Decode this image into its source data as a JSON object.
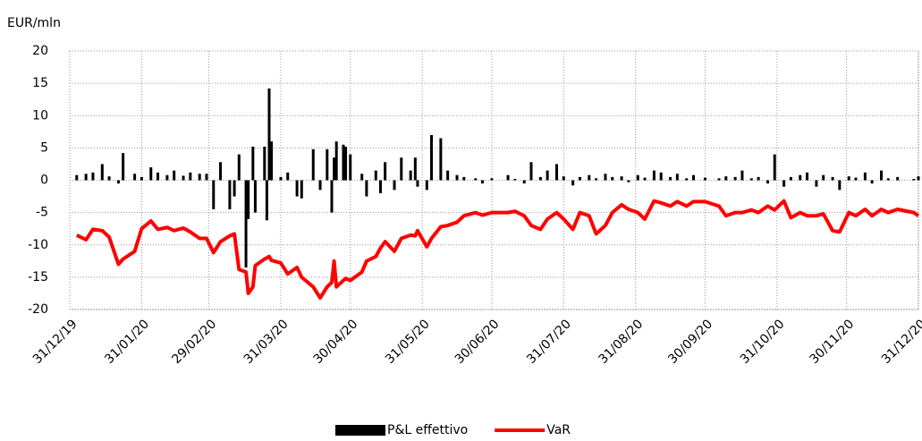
{
  "chart_data": {
    "type": "bar-line",
    "y_axis_label": "EUR/mln",
    "x": [
      "03/01/20",
      "07/01/20",
      "10/01/20",
      "14/01/20",
      "17/01/20",
      "21/01/20",
      "23/01/20",
      "28/01/20",
      "31/01/20",
      "04/02/20",
      "07/02/20",
      "11/02/20",
      "14/02/20",
      "18/02/20",
      "21/02/20",
      "25/02/20",
      "28/02/20",
      "02/03/20",
      "05/03/20",
      "09/03/20",
      "11/03/20",
      "13/03/20",
      "16/03/20",
      "17/03/20",
      "19/03/20",
      "20/03/20",
      "24/03/20",
      "25/03/20",
      "26/03/20",
      "27/03/20",
      "31/03/20",
      "03/04/20",
      "07/04/20",
      "09/04/20",
      "14/04/20",
      "17/04/20",
      "20/04/20",
      "22/04/20",
      "23/04/20",
      "24/04/20",
      "27/04/20",
      "28/04/20",
      "30/04/20",
      "05/05/20",
      "07/05/20",
      "11/05/20",
      "13/05/20",
      "15/05/20",
      "19/05/20",
      "22/05/20",
      "26/05/20",
      "28/05/20",
      "29/05/20",
      "02/06/20",
      "04/06/20",
      "08/06/20",
      "11/06/20",
      "15/06/20",
      "18/06/20",
      "23/06/20",
      "26/06/20",
      "30/06/20",
      "07/07/20",
      "10/07/20",
      "14/07/20",
      "17/07/20",
      "21/07/20",
      "24/07/20",
      "28/07/20",
      "31/07/20",
      "04/08/20",
      "07/08/20",
      "11/08/20",
      "14/08/20",
      "18/08/20",
      "21/08/20",
      "25/08/20",
      "28/08/20",
      "01/09/20",
      "04/09/20",
      "08/09/20",
      "11/09/20",
      "15/09/20",
      "18/09/20",
      "22/09/20",
      "25/09/20",
      "30/09/20",
      "06/10/20",
      "09/10/20",
      "13/10/20",
      "16/10/20",
      "20/10/20",
      "23/10/20",
      "27/10/20",
      "30/10/20",
      "03/11/20",
      "06/11/20",
      "10/11/20",
      "13/11/20",
      "17/11/20",
      "20/11/20",
      "24/11/20",
      "27/11/20",
      "01/12/20",
      "04/12/20",
      "08/12/20",
      "11/12/20",
      "15/12/20",
      "18/12/20",
      "22/12/20",
      "29/12/20",
      "31/12/20"
    ],
    "series": [
      {
        "name": "P&L effettivo",
        "kind": "bar",
        "color": "#000000",
        "values": [
          0.8,
          1.0,
          1.2,
          2.5,
          0.6,
          -0.5,
          4.2,
          1.0,
          0.5,
          2.0,
          1.2,
          0.8,
          1.5,
          0.7,
          1.2,
          1.0,
          1.0,
          -4.5,
          2.8,
          -4.5,
          -2.5,
          4.0,
          -13.5,
          -6.0,
          5.2,
          -5.0,
          5.2,
          -6.2,
          14.2,
          6.0,
          0.5,
          1.2,
          -2.5,
          -2.8,
          4.8,
          -1.5,
          4.8,
          -5.0,
          3.5,
          6.0,
          5.5,
          5.2,
          4.0,
          1.0,
          -2.5,
          1.5,
          -2.0,
          2.8,
          -1.5,
          3.5,
          1.5,
          3.5,
          -1.0,
          -1.5,
          7.0,
          6.5,
          1.5,
          0.8,
          0.5,
          0.3,
          -0.5,
          0.3,
          0.8,
          0.2,
          -0.5,
          2.8,
          0.5,
          1.5,
          2.5,
          0.6,
          -0.8,
          0.5,
          0.8,
          0.3,
          1.0,
          0.5,
          0.6,
          -0.3,
          0.8,
          0.4,
          1.5,
          1.2,
          0.5,
          1.0,
          0.3,
          0.8,
          0.4,
          0.3,
          0.6,
          0.5,
          1.5,
          0.3,
          0.5,
          -0.5,
          4.0,
          -1.0,
          0.5,
          0.8,
          1.2,
          -1.0,
          0.8,
          0.5,
          -1.5,
          0.6,
          0.4,
          1.2,
          -0.5,
          1.5,
          0.3,
          0.5,
          0.2,
          0.6
        ]
      },
      {
        "name": "VaR",
        "kind": "line",
        "color": "#ff0000",
        "values": [
          -8.5,
          -9.2,
          -7.6,
          -7.8,
          -8.8,
          -13,
          -12.2,
          -11,
          -7.5,
          -6.3,
          -7.6,
          -7.3,
          -7.8,
          -7.4,
          -8.0,
          -9.0,
          -9.0,
          -11.2,
          -9.5,
          -8.6,
          -8.3,
          -13.8,
          -14.2,
          -17.5,
          -16.5,
          -13.2,
          -12.2,
          -12.0,
          -11.8,
          -12.4,
          -12.8,
          -14.5,
          -13.5,
          -15,
          -16.5,
          -18.2,
          -16.5,
          -15.8,
          -12.5,
          -16.5,
          -15.5,
          -15.2,
          -15.5,
          -14.2,
          -12.5,
          -11.8,
          -10.5,
          -9.5,
          -11,
          -9.0,
          -8.5,
          -8.6,
          -7.8,
          -10.3,
          -9.0,
          -7.2,
          -7.0,
          -6.5,
          -5.5,
          -5.0,
          -5.4,
          -5.0,
          -5.0,
          -4.8,
          -5.5,
          -7.0,
          -7.6,
          -6.0,
          -5.0,
          -6.0,
          -7.6,
          -5.0,
          -5.5,
          -8.3,
          -7.0,
          -5.0,
          -3.8,
          -4.5,
          -5.0,
          -6.0,
          -3.2,
          -3.5,
          -4.0,
          -3.3,
          -4.0,
          -3.3,
          -3.3,
          -4.0,
          -5.5,
          -5.0,
          -5.0,
          -4.6,
          -5.0,
          -4.0,
          -4.6,
          -3.2,
          -5.8,
          -5.0,
          -5.5,
          -5.5,
          -5.2,
          -7.8,
          -8.0,
          -5.0,
          -5.5,
          -4.5,
          -5.5,
          -4.5,
          -5.0,
          -4.5,
          -5.0,
          -5.5
        ]
      }
    ],
    "xlim": [
      "31/12/19",
      "31/12/20"
    ],
    "xticks": [
      "31/12/19",
      "31/01/20",
      "29/02/20",
      "31/03/20",
      "30/04/20",
      "31/05/20",
      "30/06/20",
      "31/07/20",
      "31/08/20",
      "30/09/20",
      "31/10/20",
      "30/11/20",
      "31/12/20"
    ],
    "ylim": [
      -20,
      20
    ],
    "yticks": [
      -20,
      -15,
      -10,
      -5,
      0,
      5,
      10,
      15,
      20
    ],
    "grid": true,
    "legend": "bottom"
  }
}
